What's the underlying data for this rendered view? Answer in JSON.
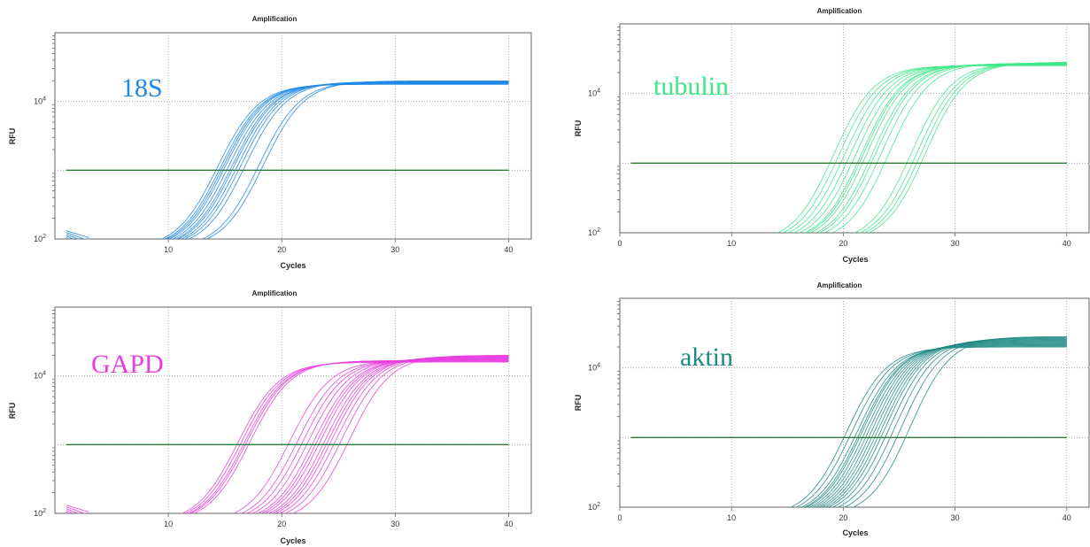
{
  "chart_data": [
    {
      "type": "line",
      "title": "Amplification",
      "xlabel": "Cycles",
      "ylabel": "RFU",
      "annotation": "18S",
      "color": "#1e88e5",
      "xlim": [
        0,
        42
      ],
      "ylim_log10": [
        2,
        5.0
      ],
      "y_scale": "log",
      "x_ticks": [
        "10",
        "20",
        "30",
        "40"
      ],
      "y_ticks": [
        {
          "base": "10",
          "exp": "2"
        },
        {
          "base": "10",
          "exp": "4"
        }
      ],
      "threshold": 1000,
      "threshold_color": "#2e7d32",
      "grid": true,
      "series_ct": [
        14.5,
        14.8,
        15.0,
        15.2,
        15.5,
        15.8,
        16.0,
        16.3,
        16.6,
        17.0,
        18.2,
        18.6
      ],
      "plateau_log10": [
        4.25,
        4.3
      ]
    },
    {
      "type": "line",
      "title": "Amplification",
      "xlabel": "Cycles",
      "ylabel": "RFU",
      "annotation": "tubulin",
      "color": "#3ee887",
      "xlim": [
        0,
        42
      ],
      "ylim_log10": [
        2,
        5.0
      ],
      "y_scale": "log",
      "x_ticks": [
        "0",
        "10",
        "20",
        "30",
        "40"
      ],
      "y_ticks": [
        {
          "base": "10",
          "exp": "2"
        },
        {
          "base": "10",
          "exp": "4"
        }
      ],
      "threshold": 1000,
      "threshold_color": "#2e7d32",
      "grid": true,
      "series_ct": [
        19.5,
        20.0,
        20.5,
        21.0,
        21.5,
        22.0,
        22.2,
        22.5,
        23.0,
        23.3,
        23.8,
        24.5,
        26.5,
        27.0,
        27.4,
        27.8
      ],
      "plateau_log10": [
        4.4,
        4.45
      ]
    },
    {
      "type": "line",
      "title": "Amplification",
      "xlabel": "Cycles",
      "ylabel": "RFU",
      "annotation": "GAPD",
      "color": "#e83ee0",
      "xlim": [
        0,
        42
      ],
      "ylim_log10": [
        2,
        5.0
      ],
      "y_scale": "log",
      "x_ticks": [
        "10",
        "20",
        "30",
        "40"
      ],
      "y_ticks": [
        {
          "base": "10",
          "exp": "2"
        },
        {
          "base": "10",
          "exp": "4"
        }
      ],
      "threshold": 1000,
      "threshold_color": "#2e7d32",
      "grid": true,
      "series_ct": [
        16.2,
        16.5,
        16.8,
        17.0,
        17.3,
        20.8,
        21.5,
        22.0,
        22.5,
        23.0,
        23.3,
        23.6,
        24.0,
        24.3,
        24.6,
        25.0,
        25.5,
        26.2
      ],
      "plateau_log10": [
        4.2,
        4.3
      ]
    },
    {
      "type": "line",
      "title": "Amplification",
      "xlabel": "Cycles",
      "ylabel": "RFU",
      "annotation": "aktin",
      "color": "#1e8a84",
      "xlim": [
        0,
        42
      ],
      "ylim_log10": [
        2,
        5.0
      ],
      "y_scale": "log",
      "x_ticks": [
        "0",
        "10",
        "20",
        "30",
        "40"
      ],
      "y_ticks": [
        {
          "base": "10",
          "exp": "2"
        },
        {
          "base": "10",
          "exp": "4"
        }
      ],
      "threshold": 1000,
      "threshold_color": "#2e7d32",
      "grid": true,
      "series_ct": [
        20.5,
        21.0,
        21.5,
        21.8,
        22.0,
        22.3,
        22.6,
        22.9,
        23.2,
        23.5,
        23.8,
        24.1,
        24.5,
        25.0,
        25.6,
        26.4
      ],
      "plateau_log10": [
        4.3,
        4.45
      ]
    }
  ]
}
